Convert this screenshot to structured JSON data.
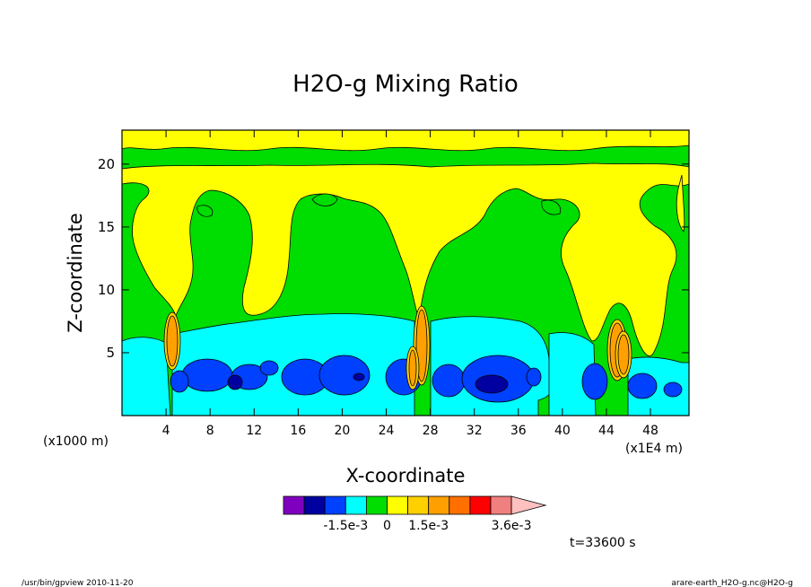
{
  "chart_data": {
    "type": "heatmap",
    "title": "H2O-g Mixing Ratio",
    "xlabel": "X-coordinate",
    "ylabel": "Z-coordinate",
    "x_unit_left": "(x1000 m)",
    "x_unit_right": "(x1E4 m)",
    "xlim": [
      0,
      51.5
    ],
    "ylim": [
      0,
      22.7
    ],
    "x_ticks": [
      4,
      8,
      12,
      16,
      20,
      24,
      28,
      32,
      36,
      40,
      44,
      48
    ],
    "y_ticks": [
      5,
      10,
      15,
      20
    ],
    "legend": {
      "colors": [
        "#8000C0",
        "#0000A0",
        "#0040FF",
        "#00FFFF",
        "#00DD00",
        "#FFFF00",
        "#FFD000",
        "#FFA000",
        "#FF7000",
        "#FF0000",
        "#F08080",
        "#FFC0C0"
      ],
      "labels": [
        {
          "text": "-1.5e-3",
          "after_index": 2
        },
        {
          "text": "0",
          "after_index": 4
        },
        {
          "text": "1.5e-3",
          "after_index": 6
        },
        {
          "text": "3.6e-3",
          "after_index": 10
        }
      ]
    },
    "time_label": "t=33600 s",
    "colors": {
      "green": "#00DD00",
      "yellow": "#FFFF00",
      "cyan": "#00FFFF",
      "blue": "#0040FF",
      "dark_blue": "#0000A0",
      "orange": "#FFA000",
      "gold": "#FFD000"
    }
  },
  "footer": {
    "left": "/usr/bin/gpview   2010-11-20",
    "right": "arare-earth_H2O-g.nc@H2O-g"
  }
}
